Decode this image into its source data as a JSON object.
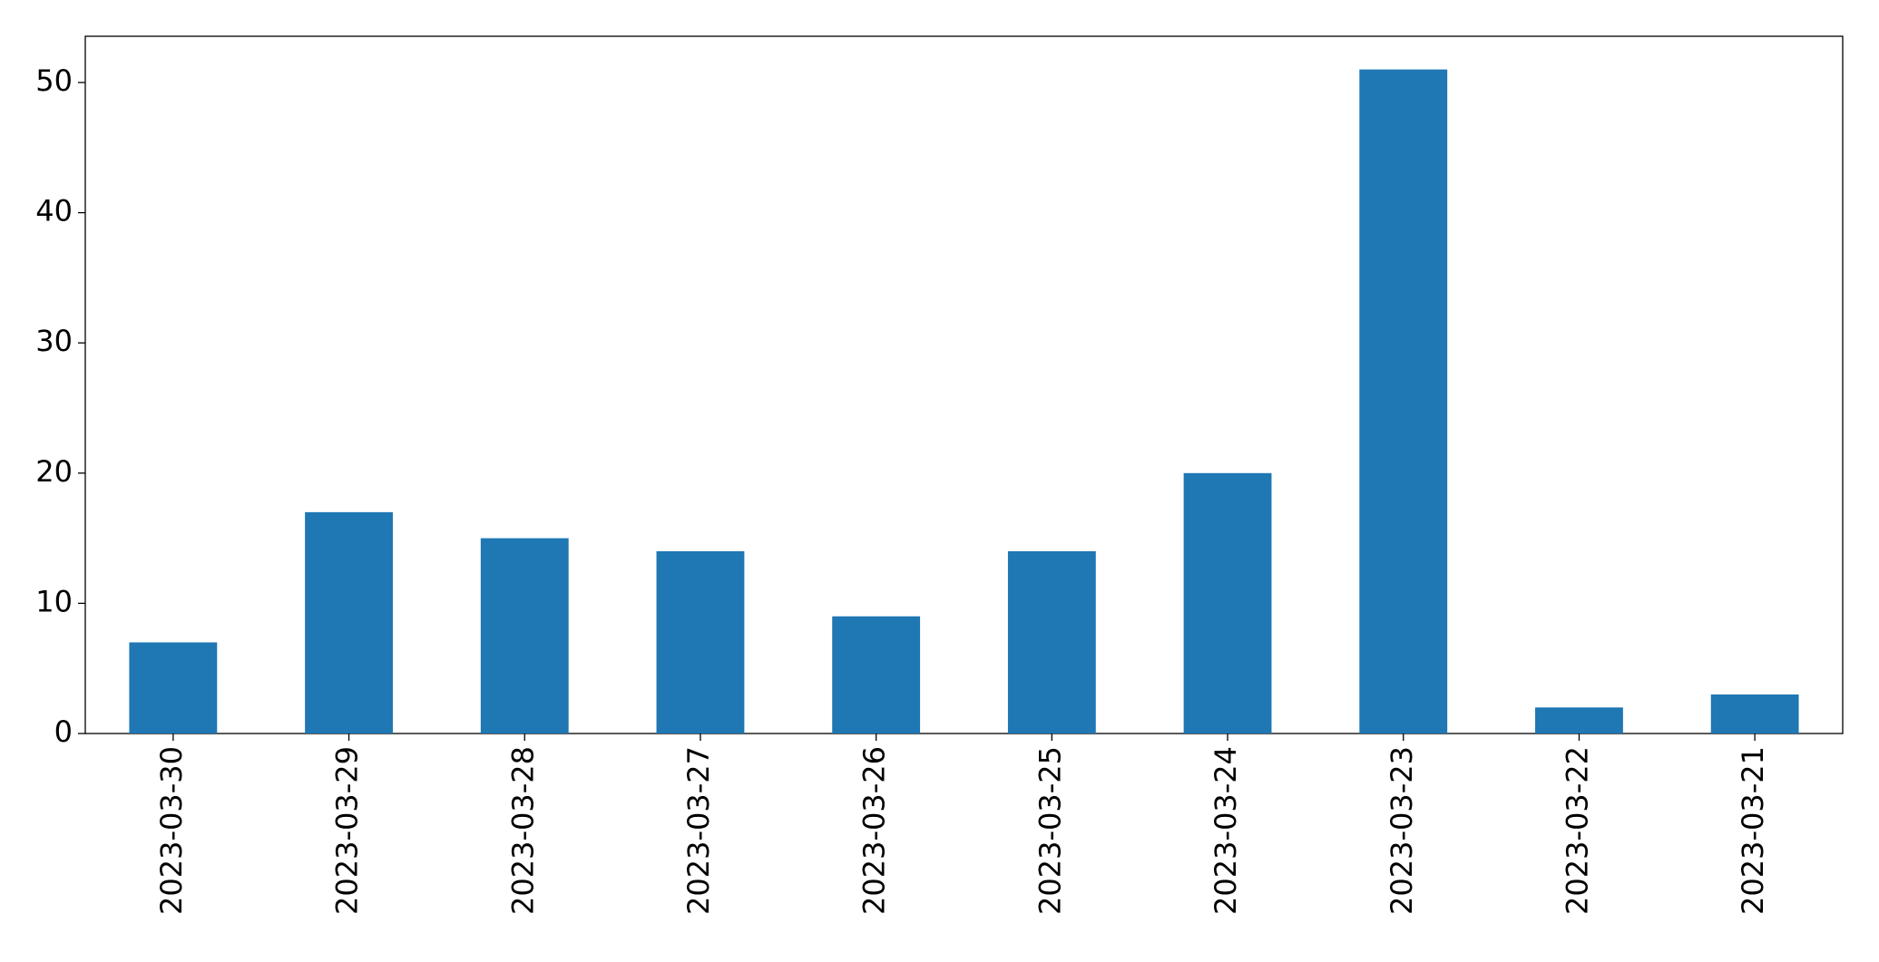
{
  "chart_data": {
    "type": "bar",
    "categories": [
      "2023-03-30",
      "2023-03-29",
      "2023-03-28",
      "2023-03-27",
      "2023-03-26",
      "2023-03-25",
      "2023-03-24",
      "2023-03-23",
      "2023-03-22",
      "2023-03-21"
    ],
    "values": [
      7,
      17,
      15,
      14,
      9,
      14,
      20,
      51,
      2,
      3
    ],
    "color": "#1f77b4",
    "ylim": [
      0,
      53.55
    ],
    "yticks": [
      0,
      10,
      20,
      30,
      40,
      50
    ],
    "grid": false
  }
}
